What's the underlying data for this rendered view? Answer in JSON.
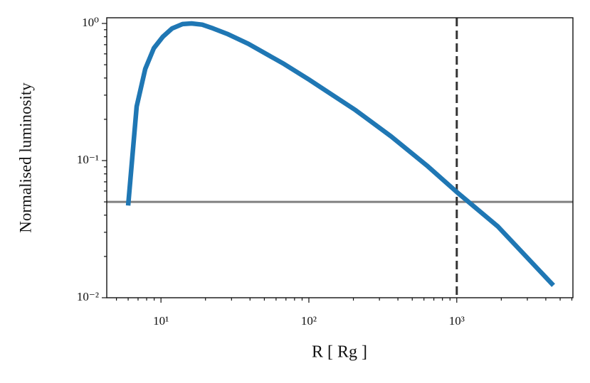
{
  "chart_data": {
    "type": "line",
    "xlabel": "R [ Rg ]",
    "ylabel": "Normalised luminosity",
    "xscale": "log",
    "yscale": "log",
    "xlim": [
      4.3,
      6100
    ],
    "ylim": [
      0.01,
      1.1
    ],
    "xticks": [
      {
        "value": 10,
        "label": "10¹"
      },
      {
        "value": 100,
        "label": "10²"
      },
      {
        "value": 1000,
        "label": "10³"
      }
    ],
    "yticks": [
      {
        "value": 0.01,
        "label": "10⁻²"
      },
      {
        "value": 0.1,
        "label": "10⁻¹"
      },
      {
        "value": 1,
        "label": "10⁰"
      }
    ],
    "xminorticks": [
      5,
      6,
      7,
      8,
      9,
      20,
      30,
      40,
      50,
      60,
      70,
      80,
      90,
      200,
      300,
      400,
      500,
      600,
      700,
      800,
      900,
      2000,
      3000,
      4000,
      5000,
      6000
    ],
    "yminorticks": [
      0.02,
      0.03,
      0.04,
      0.05,
      0.06,
      0.07,
      0.08,
      0.09,
      0.2,
      0.3,
      0.4,
      0.5,
      0.6,
      0.7,
      0.8,
      0.9
    ],
    "x": [
      6,
      6.85,
      7.83,
      8.95,
      10.3,
      11.9,
      14,
      16.1,
      19,
      22.5,
      28,
      39,
      68,
      100,
      207,
      360,
      628,
      1000,
      1900,
      4500
    ],
    "series": [
      {
        "color": "#1f77b4",
        "values": [
          0.047,
          0.248,
          0.466,
          0.66,
          0.8,
          0.92,
          0.99,
          1.0,
          0.98,
          0.92,
          0.84,
          0.71,
          0.506,
          0.39,
          0.233,
          0.15,
          0.092,
          0.059,
          0.033,
          0.0123
        ]
      }
    ],
    "hlines": [
      {
        "value": 0.05,
        "color": "#808080",
        "style": "solid"
      }
    ],
    "vlines": [
      {
        "value": 1000,
        "color": "#333333",
        "style": "dashed"
      }
    ]
  }
}
